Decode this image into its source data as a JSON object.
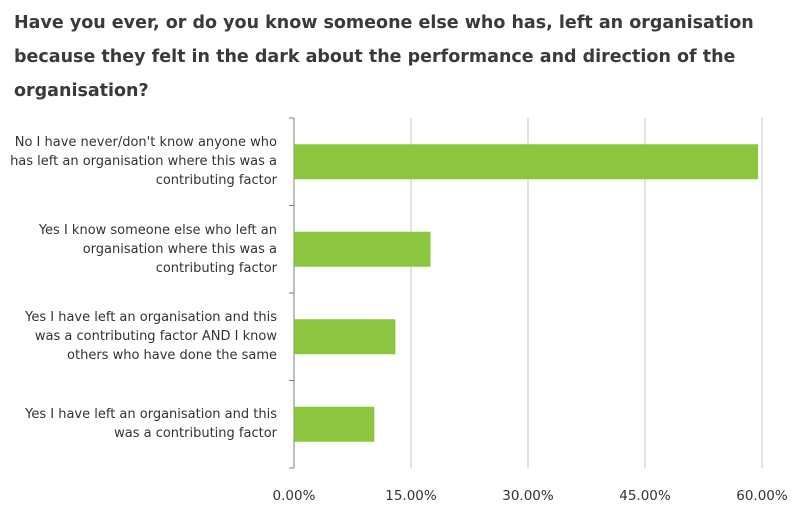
{
  "chart_data": {
    "type": "bar",
    "orientation": "horizontal",
    "title": "Have you ever, or do you know someone else who has, left an organisation because they felt in the dark about the performance and direction of the organisation?",
    "categories": [
      "No I have never/don't know anyone who has left an organisation where this was a contributing factor",
      "Yes I know someone else who left an organisation where this was a contributing factor",
      "Yes I have left an organisation and this was a contributing factor AND I know others who have done the same",
      "Yes I have left an organisation and this was a contributing factor"
    ],
    "values": [
      59.5,
      17.5,
      13.0,
      10.3
    ],
    "xlim": [
      0,
      60
    ],
    "xticks": [
      "0.00%",
      "15.00%",
      "30.00%",
      "45.00%",
      "60.00%"
    ],
    "grid": true,
    "bar_color": "#8cc63f",
    "grid_color": "#d9d9d9"
  }
}
